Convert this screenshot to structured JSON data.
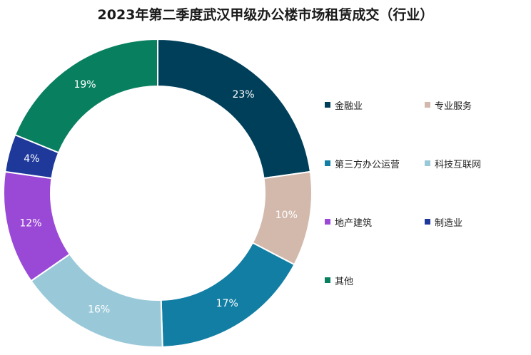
{
  "chart_data": {
    "type": "pie",
    "title": "2023年第二季度武汉甲级办公楼市场租赁成交（行业）",
    "series": [
      {
        "name": "金融业",
        "value": 23,
        "label": "23%",
        "color": "#003f5a"
      },
      {
        "name": "专业服务",
        "value": 10,
        "label": "10%",
        "color": "#d3b9ac"
      },
      {
        "name": "第三方办公运营",
        "value": 17,
        "label": "17%",
        "color": "#127ea4"
      },
      {
        "name": "科技互联网",
        "value": 16,
        "label": "16%",
        "color": "#99c9d9"
      },
      {
        "name": "地产建筑",
        "value": 12,
        "label": "12%",
        "color": "#9a48d6"
      },
      {
        "name": "制造业",
        "value": 4,
        "label": "4%",
        "color": "#1f399b"
      },
      {
        "name": "其他",
        "value": 19,
        "label": "19%",
        "color": "#088060"
      }
    ],
    "legend_position": "right",
    "donut": true
  }
}
